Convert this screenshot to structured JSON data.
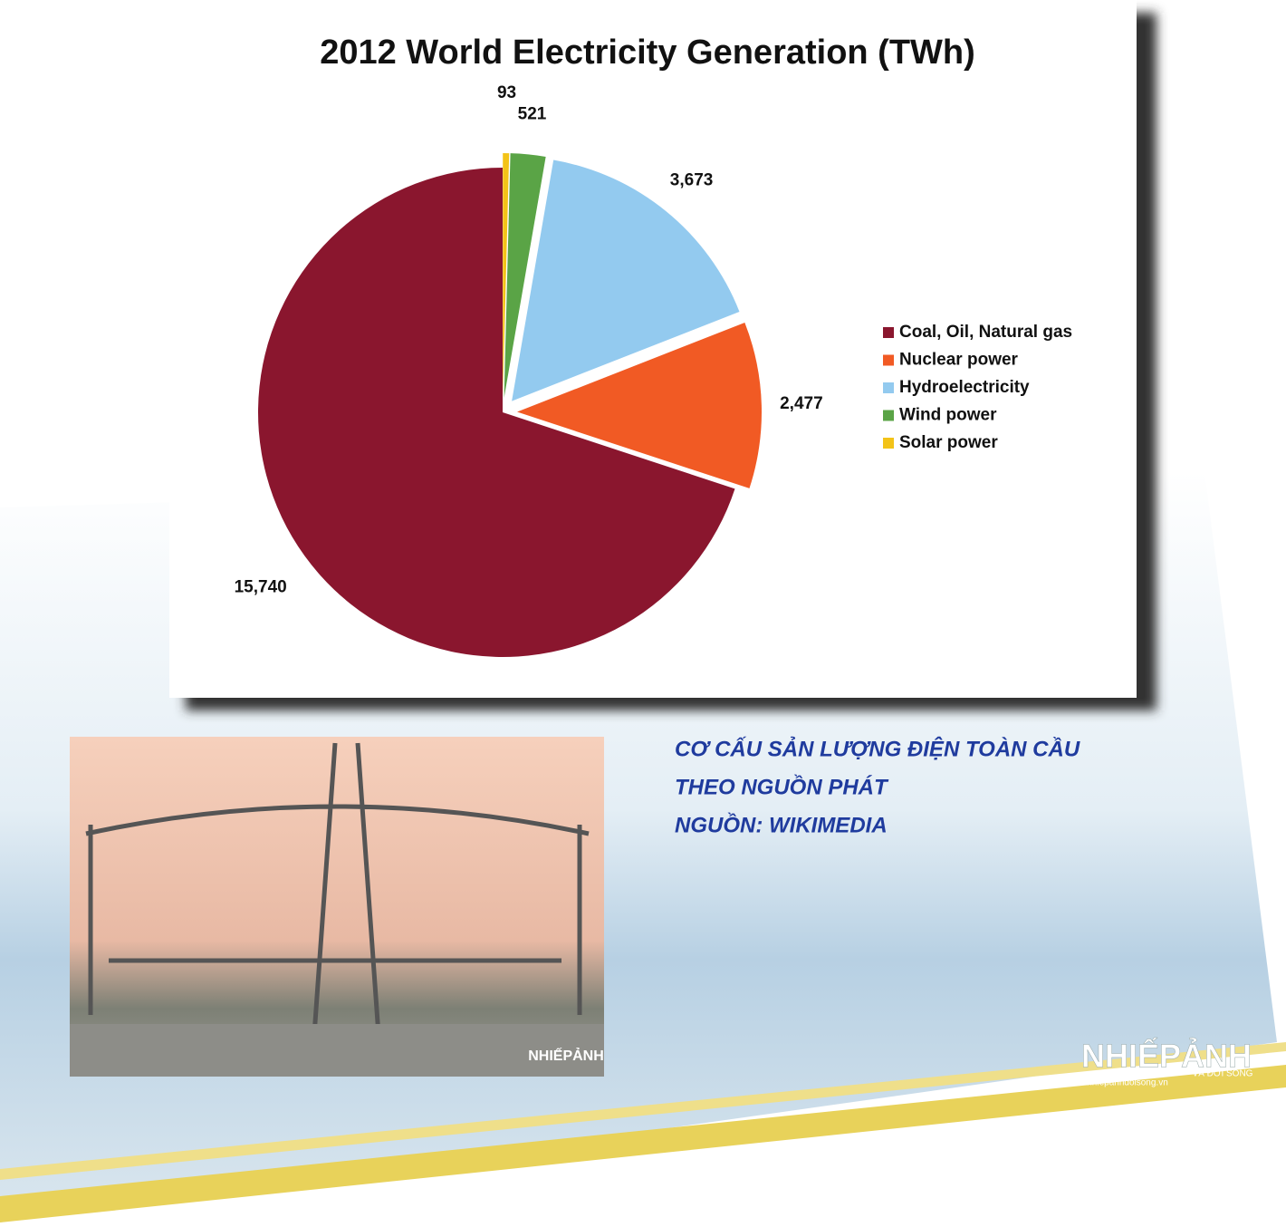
{
  "chart_data": {
    "type": "pie",
    "title": "2012 World Electricity Generation (TWh)",
    "categories": [
      "Coal, Oil, Natural gas",
      "Nuclear power",
      "Hydroelectricity",
      "Wind power",
      "Solar power"
    ],
    "values": [
      15740,
      2477,
      3673,
      521,
      93
    ],
    "value_labels": [
      "15,740",
      "2,477",
      "3,673",
      "521",
      "93"
    ],
    "colors": [
      "#8a162e",
      "#f15a24",
      "#93caef",
      "#5aa446",
      "#f3c318"
    ],
    "legend": "right"
  },
  "caption": [
    "CƠ CẤU SẢN LƯỢNG ĐIỆN TOÀN CẦU",
    "THEO NGUỒN PHÁT",
    "NGUỒN: WIKIMEDIA"
  ],
  "watermark": {
    "brand": "NHIẾPẢNH",
    "tagline": "VÀ ĐỜI SỐNG",
    "site": "nhiepanhdoisong.vn"
  }
}
